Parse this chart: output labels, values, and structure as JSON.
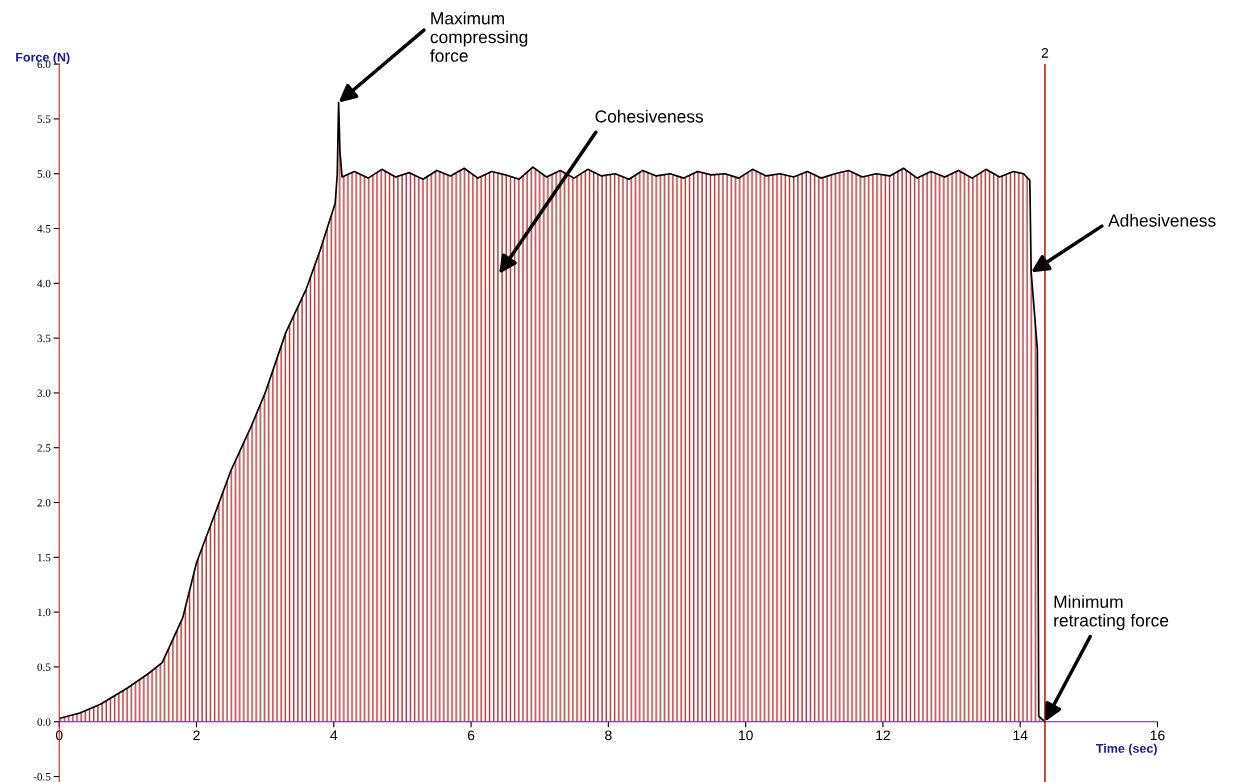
{
  "chart_data": {
    "type": "area",
    "xlabel": "Time (sec)",
    "ylabel": "Force (N)",
    "xlim": [
      0,
      16
    ],
    "ylim": [
      -0.55,
      6.0
    ],
    "xticks": [
      0,
      2,
      4,
      6,
      8,
      10,
      12,
      14,
      16
    ],
    "yticks": [
      {
        "value": -0.5,
        "label": "-0.5"
      },
      {
        "value": 0,
        "label": "0.0"
      },
      {
        "value": 0.5,
        "label": "0.5"
      },
      {
        "value": 1,
        "label": "1.0"
      },
      {
        "value": 1.5,
        "label": "1.5"
      },
      {
        "value": 2,
        "label": "2.0"
      },
      {
        "value": 2.5,
        "label": "2.5"
      },
      {
        "value": 3,
        "label": "3.0"
      },
      {
        "value": 3.5,
        "label": "3.5"
      },
      {
        "value": 4,
        "label": "4.0"
      },
      {
        "value": 4.5,
        "label": "4.5"
      },
      {
        "value": 5,
        "label": "5.0"
      },
      {
        "value": 5.5,
        "label": "5.5"
      },
      {
        "value": 6,
        "label": "6.0"
      }
    ],
    "grid": false,
    "series": [
      {
        "color": "#b03030",
        "x": [
          0,
          0.3,
          0.6,
          1.0,
          1.3,
          1.5,
          1.8,
          2.0,
          2.3,
          2.5,
          2.8,
          3.0,
          3.3,
          3.6,
          3.8,
          4.02,
          4.05,
          4.07,
          4.09,
          4.12,
          4.3,
          4.5,
          4.7,
          4.9,
          5.1,
          5.3,
          5.5,
          5.7,
          5.9,
          6.1,
          6.3,
          6.5,
          6.7,
          6.9,
          7.1,
          7.3,
          7.5,
          7.7,
          7.9,
          8.1,
          8.3,
          8.5,
          8.7,
          8.9,
          9.1,
          9.3,
          9.5,
          9.7,
          9.9,
          10.1,
          10.3,
          10.5,
          10.7,
          10.9,
          11.1,
          11.3,
          11.5,
          11.7,
          11.9,
          12.1,
          12.3,
          12.5,
          12.7,
          12.9,
          13.1,
          13.3,
          13.5,
          13.7,
          13.9,
          14.05,
          14.14,
          14.16,
          14.25,
          14.27,
          14.36
        ],
        "values": [
          0.03,
          0.08,
          0.16,
          0.31,
          0.44,
          0.54,
          0.95,
          1.45,
          1.95,
          2.29,
          2.7,
          3.0,
          3.55,
          3.95,
          4.3,
          4.73,
          4.99,
          5.65,
          5.2,
          4.97,
          5.02,
          4.96,
          5.04,
          4.97,
          5.01,
          4.95,
          5.03,
          4.98,
          5.05,
          4.96,
          5.02,
          4.99,
          4.95,
          5.06,
          4.97,
          5.03,
          4.96,
          5.04,
          4.98,
          5.0,
          4.95,
          5.03,
          4.98,
          5.0,
          4.96,
          5.02,
          4.99,
          5.0,
          4.96,
          5.04,
          4.98,
          5.0,
          4.97,
          5.02,
          4.96,
          5.0,
          5.03,
          4.97,
          5.0,
          4.98,
          5.05,
          4.96,
          5.02,
          4.97,
          5.03,
          4.96,
          5.04,
          4.97,
          5.02,
          5.0,
          4.94,
          4.1,
          3.4,
          0.05,
          0.0
        ]
      }
    ],
    "ref_lines": [
      {
        "axis": "x",
        "value": 14.36,
        "color": "#cc2222"
      }
    ],
    "annotations": [
      {
        "text": "Maximum\ncompressing\nforce",
        "x": 4.07,
        "y": 5.65
      },
      "Cohesiveness",
      {
        "text": "Adhesiveness",
        "x": 14.16,
        "y": 4.1
      },
      {
        "text": "Minimum\nretracting force",
        "x": 14.36,
        "y": 0.0
      },
      "2"
    ]
  }
}
